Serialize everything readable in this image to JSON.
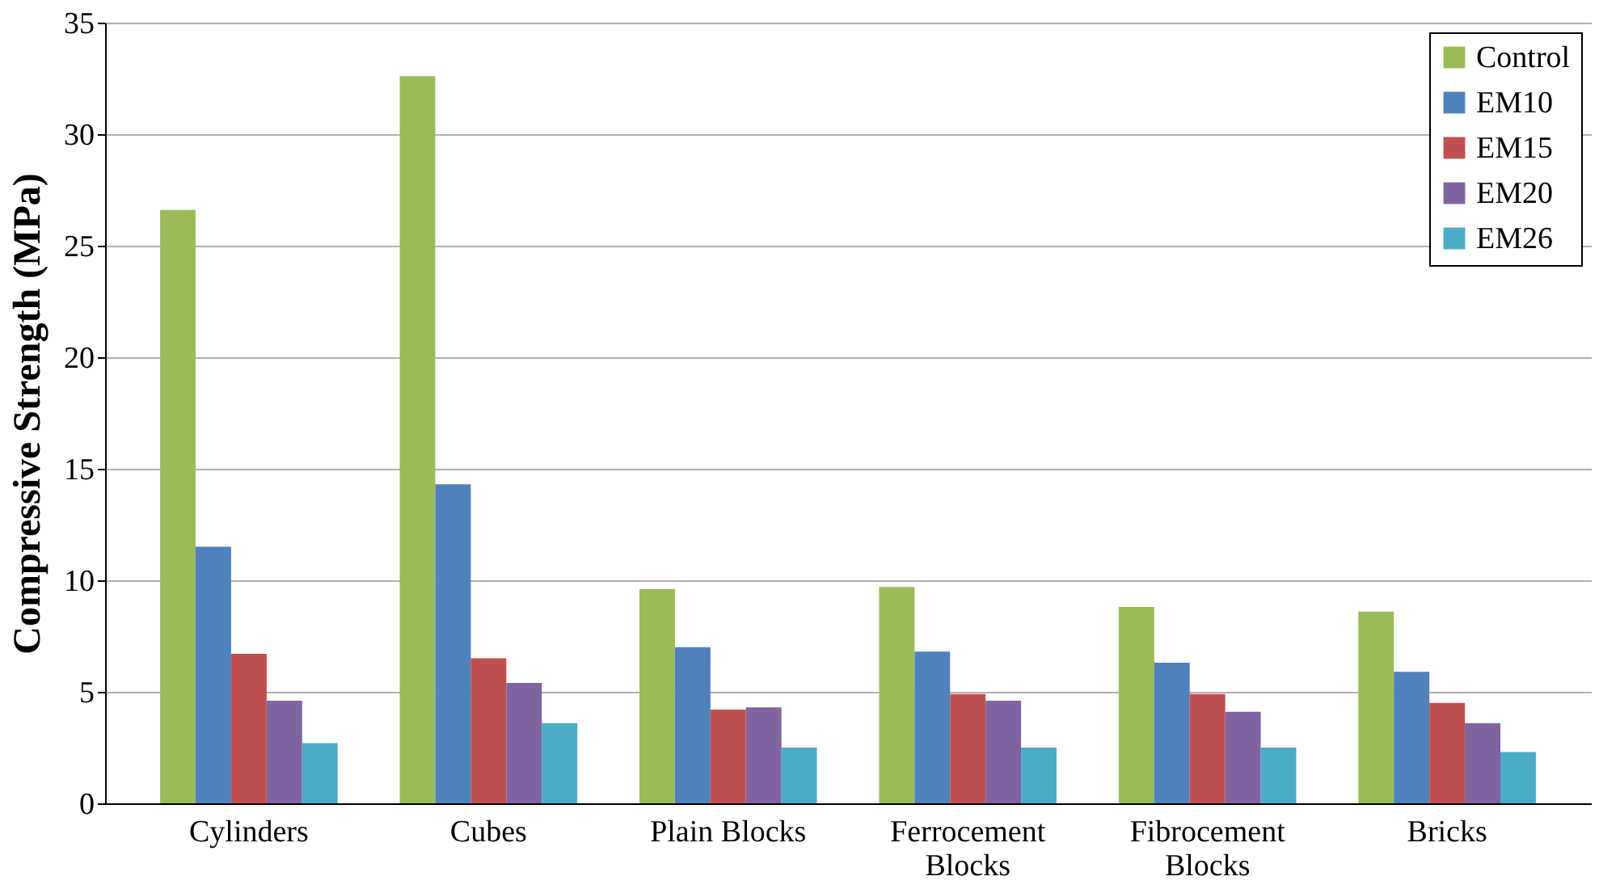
{
  "chart_data": {
    "type": "bar",
    "ylabel": "Compressive Strength (MPa)",
    "categories": [
      "Cylinders",
      "Cubes",
      "Plain Blocks",
      "Ferrocement Blocks",
      "Fibrocement Blocks",
      "Bricks"
    ],
    "series": [
      {
        "name": "Control",
        "color": "#9bbb59",
        "values": [
          26.6,
          32.6,
          9.6,
          9.7,
          8.8,
          8.6
        ]
      },
      {
        "name": "EM10",
        "color": "#4f81bd",
        "values": [
          11.5,
          14.3,
          7.0,
          6.8,
          6.3,
          5.9
        ]
      },
      {
        "name": "EM15",
        "color": "#c0504d",
        "values": [
          6.7,
          6.5,
          4.2,
          4.9,
          4.9,
          4.5
        ]
      },
      {
        "name": "EM20",
        "color": "#8064a2",
        "values": [
          4.6,
          5.4,
          4.3,
          4.6,
          4.1,
          3.6
        ]
      },
      {
        "name": "EM26",
        "color": "#4bacc6",
        "values": [
          2.7,
          3.6,
          2.5,
          2.5,
          2.5,
          2.3
        ]
      }
    ],
    "ylim": [
      0,
      35
    ],
    "yticks": [
      0,
      5,
      10,
      15,
      20,
      25,
      30,
      35
    ],
    "grid": "y",
    "legend": "top right"
  }
}
